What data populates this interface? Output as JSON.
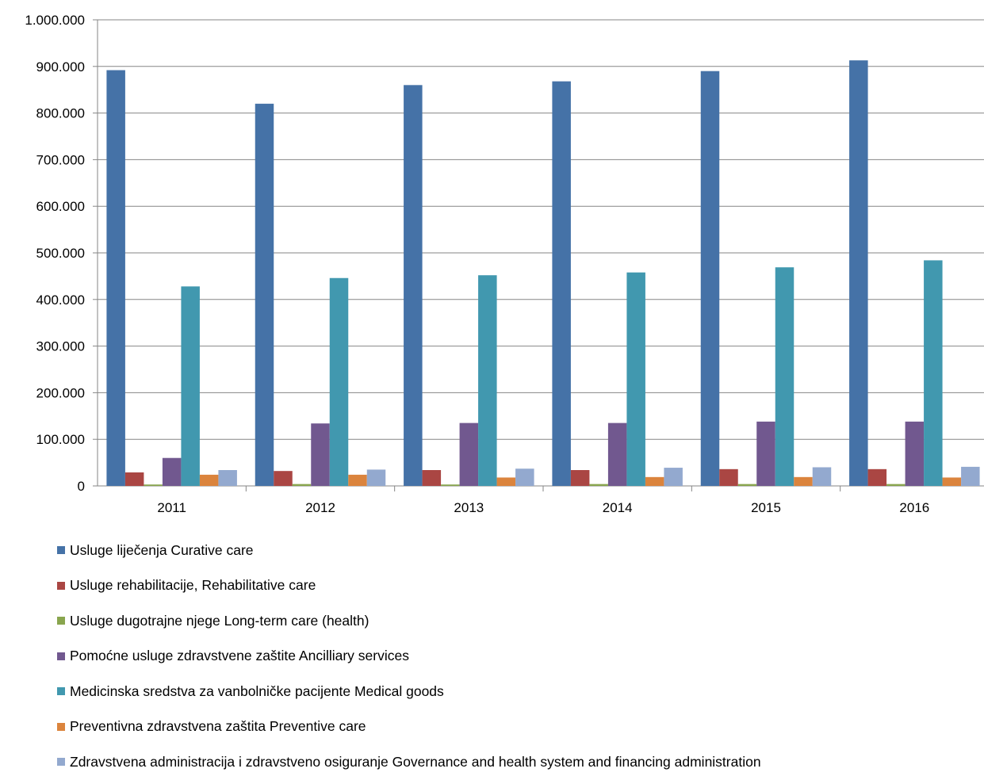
{
  "chart_data": {
    "type": "bar",
    "title": "",
    "xlabel": "",
    "ylabel": "",
    "ylim": [
      0,
      1000000
    ],
    "yticks": [
      0,
      100000,
      200000,
      300000,
      400000,
      500000,
      600000,
      700000,
      800000,
      900000,
      1000000
    ],
    "ytick_labels": [
      "0",
      "100.000",
      "200.000",
      "300.000",
      "400.000",
      "500.000",
      "600.000",
      "700.000",
      "800.000",
      "900.000",
      "1.000.000"
    ],
    "categories": [
      "2011",
      "2012",
      "2013",
      "2014",
      "2015",
      "2016"
    ],
    "grid": "horizontal",
    "legend_position": "bottom",
    "series": [
      {
        "name": "Usluge liječenja Curative care",
        "color": "#4572A7",
        "values": [
          892000,
          820000,
          860000,
          868000,
          890000,
          913000
        ]
      },
      {
        "name": "Usluge rehabilitacije, Rehabilitative care",
        "color": "#AA4643",
        "values": [
          29000,
          32000,
          34000,
          34000,
          36000,
          36000
        ]
      },
      {
        "name": "Usluge dugotrajne njege Long-term care (health)",
        "color": "#89A54E",
        "values": [
          3000,
          4000,
          3000,
          4000,
          4000,
          4000
        ]
      },
      {
        "name": "Pomoćne usluge zdravstvene zaštite Ancilliary services",
        "color": "#71588F",
        "values": [
          60000,
          134000,
          135000,
          135000,
          138000,
          138000
        ]
      },
      {
        "name": "Medicinska sredstva za vanbolničke pacijente Medical goods",
        "color": "#4198AF",
        "values": [
          428000,
          446000,
          452000,
          458000,
          469000,
          484000
        ]
      },
      {
        "name": "Preventivna zdravstvena zaštita Preventive care",
        "color": "#DB843D",
        "values": [
          24000,
          24000,
          18000,
          19000,
          19000,
          18000
        ]
      },
      {
        "name": "Zdravstvena administracija i zdravstveno osiguranje Governance and health system and financing administration",
        "color": "#93A9CF",
        "values": [
          34000,
          35000,
          37000,
          39000,
          40000,
          41000
        ]
      }
    ]
  }
}
